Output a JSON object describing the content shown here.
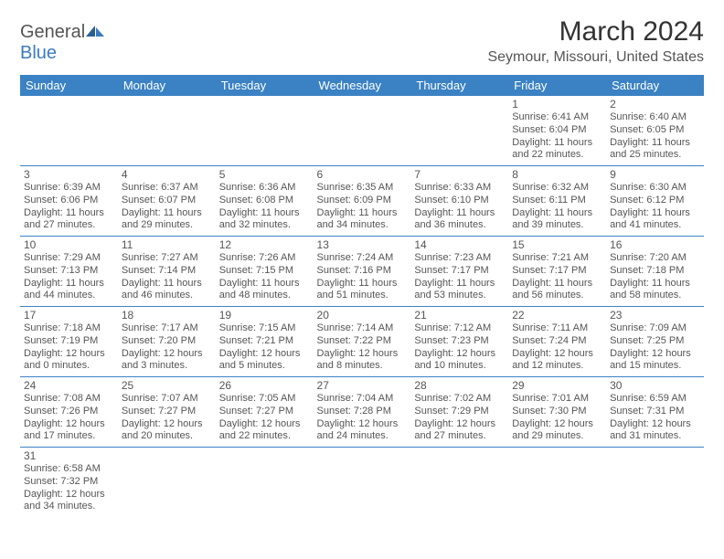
{
  "logo": {
    "text1": "General",
    "text2": "Blue"
  },
  "title": "March 2024",
  "location": "Seymour, Missouri, United States",
  "colors": {
    "header_bg": "#3b82c4",
    "header_text": "#ffffff",
    "border": "#3b82c4",
    "text": "#555555",
    "logo_blue": "#3b7bbf"
  },
  "typography": {
    "title_fontsize": 30,
    "location_fontsize": 16,
    "dayheader_fontsize": 13,
    "daynum_fontsize": 12,
    "detail_fontsize": 11
  },
  "day_headers": [
    "Sunday",
    "Monday",
    "Tuesday",
    "Wednesday",
    "Thursday",
    "Friday",
    "Saturday"
  ],
  "weeks": [
    [
      null,
      null,
      null,
      null,
      null,
      {
        "n": "1",
        "sr": "Sunrise: 6:41 AM",
        "ss": "Sunset: 6:04 PM",
        "dl": "Daylight: 11 hours and 22 minutes."
      },
      {
        "n": "2",
        "sr": "Sunrise: 6:40 AM",
        "ss": "Sunset: 6:05 PM",
        "dl": "Daylight: 11 hours and 25 minutes."
      }
    ],
    [
      {
        "n": "3",
        "sr": "Sunrise: 6:39 AM",
        "ss": "Sunset: 6:06 PM",
        "dl": "Daylight: 11 hours and 27 minutes."
      },
      {
        "n": "4",
        "sr": "Sunrise: 6:37 AM",
        "ss": "Sunset: 6:07 PM",
        "dl": "Daylight: 11 hours and 29 minutes."
      },
      {
        "n": "5",
        "sr": "Sunrise: 6:36 AM",
        "ss": "Sunset: 6:08 PM",
        "dl": "Daylight: 11 hours and 32 minutes."
      },
      {
        "n": "6",
        "sr": "Sunrise: 6:35 AM",
        "ss": "Sunset: 6:09 PM",
        "dl": "Daylight: 11 hours and 34 minutes."
      },
      {
        "n": "7",
        "sr": "Sunrise: 6:33 AM",
        "ss": "Sunset: 6:10 PM",
        "dl": "Daylight: 11 hours and 36 minutes."
      },
      {
        "n": "8",
        "sr": "Sunrise: 6:32 AM",
        "ss": "Sunset: 6:11 PM",
        "dl": "Daylight: 11 hours and 39 minutes."
      },
      {
        "n": "9",
        "sr": "Sunrise: 6:30 AM",
        "ss": "Sunset: 6:12 PM",
        "dl": "Daylight: 11 hours and 41 minutes."
      }
    ],
    [
      {
        "n": "10",
        "sr": "Sunrise: 7:29 AM",
        "ss": "Sunset: 7:13 PM",
        "dl": "Daylight: 11 hours and 44 minutes."
      },
      {
        "n": "11",
        "sr": "Sunrise: 7:27 AM",
        "ss": "Sunset: 7:14 PM",
        "dl": "Daylight: 11 hours and 46 minutes."
      },
      {
        "n": "12",
        "sr": "Sunrise: 7:26 AM",
        "ss": "Sunset: 7:15 PM",
        "dl": "Daylight: 11 hours and 48 minutes."
      },
      {
        "n": "13",
        "sr": "Sunrise: 7:24 AM",
        "ss": "Sunset: 7:16 PM",
        "dl": "Daylight: 11 hours and 51 minutes."
      },
      {
        "n": "14",
        "sr": "Sunrise: 7:23 AM",
        "ss": "Sunset: 7:17 PM",
        "dl": "Daylight: 11 hours and 53 minutes."
      },
      {
        "n": "15",
        "sr": "Sunrise: 7:21 AM",
        "ss": "Sunset: 7:17 PM",
        "dl": "Daylight: 11 hours and 56 minutes."
      },
      {
        "n": "16",
        "sr": "Sunrise: 7:20 AM",
        "ss": "Sunset: 7:18 PM",
        "dl": "Daylight: 11 hours and 58 minutes."
      }
    ],
    [
      {
        "n": "17",
        "sr": "Sunrise: 7:18 AM",
        "ss": "Sunset: 7:19 PM",
        "dl": "Daylight: 12 hours and 0 minutes."
      },
      {
        "n": "18",
        "sr": "Sunrise: 7:17 AM",
        "ss": "Sunset: 7:20 PM",
        "dl": "Daylight: 12 hours and 3 minutes."
      },
      {
        "n": "19",
        "sr": "Sunrise: 7:15 AM",
        "ss": "Sunset: 7:21 PM",
        "dl": "Daylight: 12 hours and 5 minutes."
      },
      {
        "n": "20",
        "sr": "Sunrise: 7:14 AM",
        "ss": "Sunset: 7:22 PM",
        "dl": "Daylight: 12 hours and 8 minutes."
      },
      {
        "n": "21",
        "sr": "Sunrise: 7:12 AM",
        "ss": "Sunset: 7:23 PM",
        "dl": "Daylight: 12 hours and 10 minutes."
      },
      {
        "n": "22",
        "sr": "Sunrise: 7:11 AM",
        "ss": "Sunset: 7:24 PM",
        "dl": "Daylight: 12 hours and 12 minutes."
      },
      {
        "n": "23",
        "sr": "Sunrise: 7:09 AM",
        "ss": "Sunset: 7:25 PM",
        "dl": "Daylight: 12 hours and 15 minutes."
      }
    ],
    [
      {
        "n": "24",
        "sr": "Sunrise: 7:08 AM",
        "ss": "Sunset: 7:26 PM",
        "dl": "Daylight: 12 hours and 17 minutes."
      },
      {
        "n": "25",
        "sr": "Sunrise: 7:07 AM",
        "ss": "Sunset: 7:27 PM",
        "dl": "Daylight: 12 hours and 20 minutes."
      },
      {
        "n": "26",
        "sr": "Sunrise: 7:05 AM",
        "ss": "Sunset: 7:27 PM",
        "dl": "Daylight: 12 hours and 22 minutes."
      },
      {
        "n": "27",
        "sr": "Sunrise: 7:04 AM",
        "ss": "Sunset: 7:28 PM",
        "dl": "Daylight: 12 hours and 24 minutes."
      },
      {
        "n": "28",
        "sr": "Sunrise: 7:02 AM",
        "ss": "Sunset: 7:29 PM",
        "dl": "Daylight: 12 hours and 27 minutes."
      },
      {
        "n": "29",
        "sr": "Sunrise: 7:01 AM",
        "ss": "Sunset: 7:30 PM",
        "dl": "Daylight: 12 hours and 29 minutes."
      },
      {
        "n": "30",
        "sr": "Sunrise: 6:59 AM",
        "ss": "Sunset: 7:31 PM",
        "dl": "Daylight: 12 hours and 31 minutes."
      }
    ],
    [
      {
        "n": "31",
        "sr": "Sunrise: 6:58 AM",
        "ss": "Sunset: 7:32 PM",
        "dl": "Daylight: 12 hours and 34 minutes."
      },
      null,
      null,
      null,
      null,
      null,
      null
    ]
  ]
}
